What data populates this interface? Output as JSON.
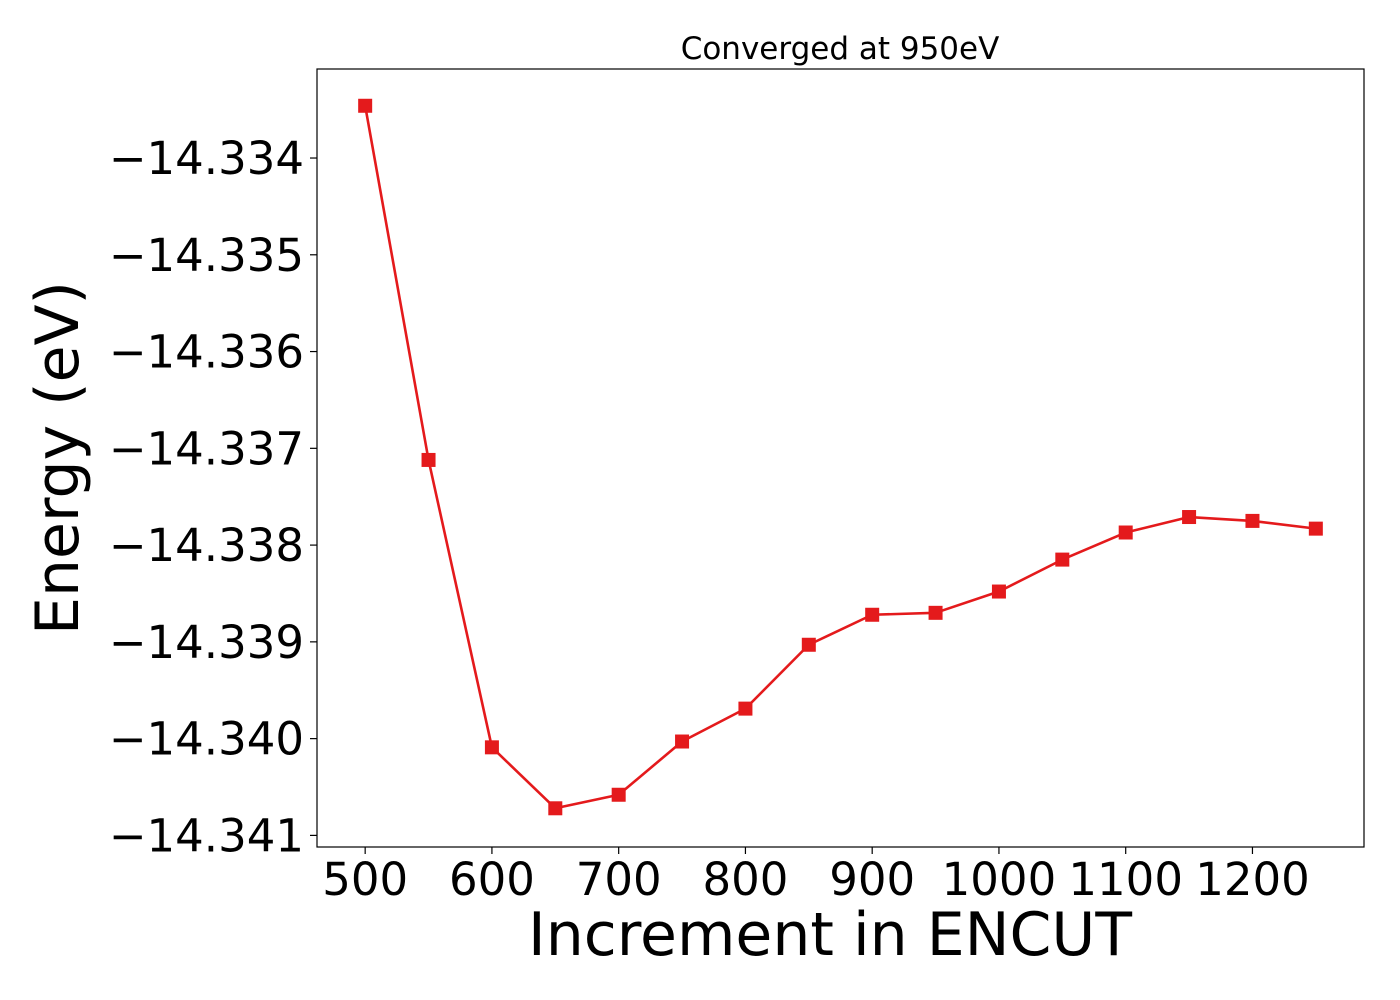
{
  "chart_data": {
    "type": "line",
    "title": "Converged at 950eV",
    "xlabel": "Increment in ENCUT",
    "ylabel": "Energy (eV)",
    "xlim": [
      462,
      1288
    ],
    "ylim": [
      -14.34112,
      -14.33308
    ],
    "xticks": [
      500,
      600,
      700,
      800,
      900,
      1000,
      1100,
      1200
    ],
    "xtick_labels": [
      "500",
      "600",
      "700",
      "800",
      "900",
      "1000",
      "1100",
      "1200"
    ],
    "yticks": [
      -14.334,
      -14.335,
      -14.336,
      -14.337,
      -14.338,
      -14.339,
      -14.34,
      -14.341
    ],
    "ytick_labels": [
      "−14.334",
      "−14.335",
      "−14.336",
      "−14.337",
      "−14.338",
      "−14.339",
      "−14.340",
      "−14.341"
    ],
    "grid": false,
    "legend": "none",
    "series": [
      {
        "color": "#e41a1c",
        "marker": "square",
        "x": [
          500,
          550,
          600,
          650,
          700,
          750,
          800,
          850,
          900,
          950,
          1000,
          1050,
          1100,
          1150,
          1200,
          1250
        ],
        "y": [
          -14.33346,
          -14.33712,
          -14.34009,
          -14.34072,
          -14.34058,
          -14.34003,
          -14.33969,
          -14.33903,
          -14.33872,
          -14.3387,
          -14.33848,
          -14.33815,
          -14.33787,
          -14.33771,
          -14.33775,
          -14.33783
        ]
      }
    ]
  }
}
